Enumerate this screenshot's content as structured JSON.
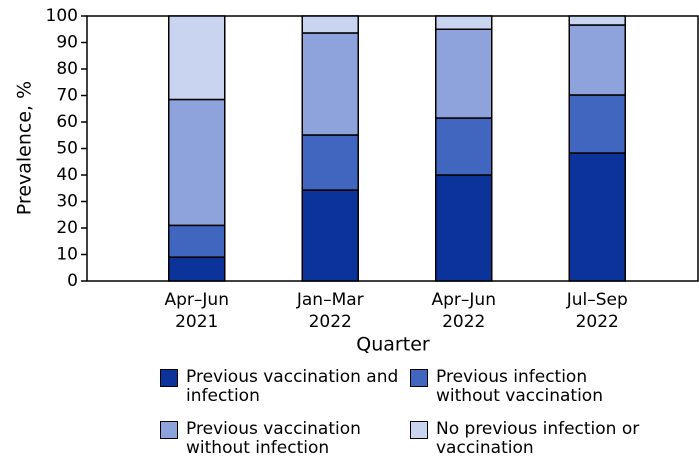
{
  "chart_data": {
    "type": "stacked-bar",
    "y_label": "Prevalence, %",
    "x_label": "Quarter",
    "categories": [
      [
        "Apr–Jun",
        "2021"
      ],
      [
        "Jan–Mar",
        "2022"
      ],
      [
        "Apr–Jun",
        "2022"
      ],
      [
        "Jul–Sep",
        "2022"
      ]
    ],
    "series": [
      {
        "name": "Previous vaccination and infection",
        "color": "#0b3399",
        "values": [
          9,
          34.3,
          40,
          48.3
        ]
      },
      {
        "name": "Previous infection without vaccination",
        "color": "#4066c0",
        "values": [
          12,
          20.8,
          21.5,
          21.9
        ]
      },
      {
        "name": "Previous vaccination without infection",
        "color": "#8ea3db",
        "values": [
          47.5,
          38.5,
          33.5,
          26.4
        ]
      },
      {
        "name": "No previous infection or vaccination",
        "color": "#c9d4f0",
        "values": [
          31.5,
          6.4,
          5,
          3.4
        ]
      }
    ],
    "ylim": [
      0,
      100
    ],
    "yticks": [
      0,
      10,
      20,
      30,
      40,
      50,
      60,
      70,
      80,
      90,
      100
    ]
  }
}
